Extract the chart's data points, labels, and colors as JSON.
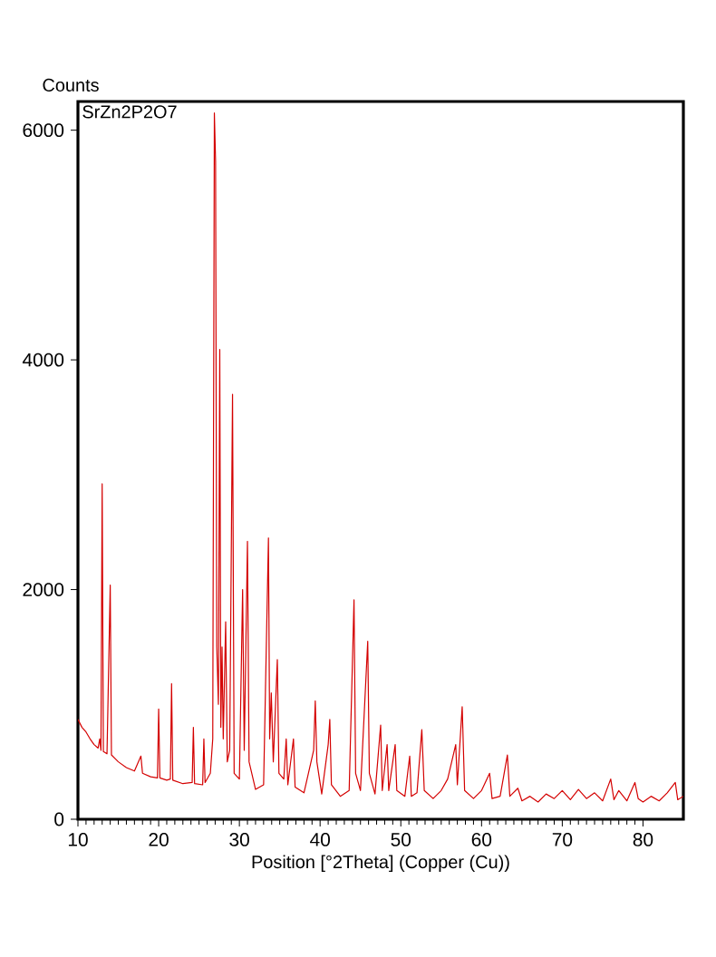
{
  "chart_data": {
    "type": "line",
    "xlabel": "Position [°2Theta] (Copper (Cu))",
    "ylabel": "Counts",
    "annotations": [
      "SrZn2P2O7"
    ],
    "xlim": [
      10,
      85
    ],
    "ylim": [
      0,
      6250
    ],
    "xticks": [
      10,
      20,
      30,
      40,
      50,
      60,
      70,
      80
    ],
    "yticks": [
      0,
      2000,
      4000,
      6000
    ],
    "grid": false,
    "marker": "none",
    "line_style": "solid",
    "series": [
      {
        "color": "#d40000",
        "x": [
          10.0,
          10.5,
          11.0,
          11.5,
          12.0,
          12.5,
          12.7,
          12.85,
          13.0,
          13.15,
          13.6,
          14.0,
          14.15,
          15,
          16,
          17,
          17.8,
          18,
          19,
          19.85,
          20.0,
          20.15,
          21,
          21.45,
          21.6,
          21.75,
          23,
          24.15,
          24.3,
          24.45,
          25.45,
          25.6,
          25.75,
          26.4,
          26.7,
          26.9,
          27.05,
          27.2,
          27.4,
          27.57,
          27.7,
          27.85,
          28.0,
          28.3,
          28.5,
          28.8,
          29.15,
          29.35,
          30.0,
          30.4,
          30.6,
          31.0,
          31.2,
          32,
          33,
          33.6,
          33.75,
          33.95,
          34.2,
          34.7,
          34.9,
          35.5,
          35.8,
          36.0,
          36.7,
          36.9,
          38,
          39.2,
          39.4,
          39.6,
          40.2,
          41.0,
          41.2,
          41.4,
          42.5,
          43.6,
          44.2,
          44.4,
          45.0,
          45.9,
          46.1,
          46.8,
          47.5,
          47.7,
          48.3,
          48.5,
          49.3,
          49.5,
          50.5,
          51.1,
          51.3,
          52.0,
          52.6,
          52.9,
          54,
          55,
          55.8,
          56.8,
          57.0,
          57.6,
          57.9,
          59,
          60,
          61,
          61.3,
          62.3,
          63.2,
          63.5,
          64.5,
          65,
          66,
          67,
          68,
          69,
          70,
          71,
          72,
          73,
          74,
          75,
          76,
          76.4,
          77,
          78,
          79,
          79.4,
          80,
          81,
          82,
          83,
          84,
          84.3,
          85
        ],
        "values": [
          870,
          800,
          760,
          700,
          650,
          620,
          700,
          600,
          2920,
          590,
          570,
          2040,
          560,
          500,
          450,
          420,
          550,
          400,
          370,
          360,
          960,
          360,
          340,
          350,
          1180,
          340,
          310,
          320,
          800,
          310,
          300,
          700,
          320,
          400,
          700,
          6150,
          5730,
          1500,
          1000,
          4090,
          800,
          1500,
          700,
          1720,
          500,
          600,
          3700,
          400,
          350,
          2000,
          600,
          2420,
          500,
          260,
          300,
          2450,
          700,
          1100,
          500,
          1390,
          400,
          350,
          700,
          300,
          700,
          280,
          230,
          600,
          1030,
          500,
          220,
          650,
          870,
          300,
          200,
          250,
          1910,
          400,
          250,
          1550,
          400,
          220,
          820,
          250,
          650,
          250,
          650,
          250,
          200,
          550,
          200,
          230,
          780,
          250,
          180,
          250,
          350,
          650,
          300,
          980,
          250,
          180,
          250,
          400,
          180,
          200,
          560,
          200,
          270,
          160,
          200,
          150,
          220,
          180,
          250,
          170,
          260,
          180,
          230,
          160,
          350,
          170,
          250,
          160,
          320,
          180,
          150,
          200,
          160,
          230,
          320,
          170,
          200
        ]
      }
    ]
  }
}
